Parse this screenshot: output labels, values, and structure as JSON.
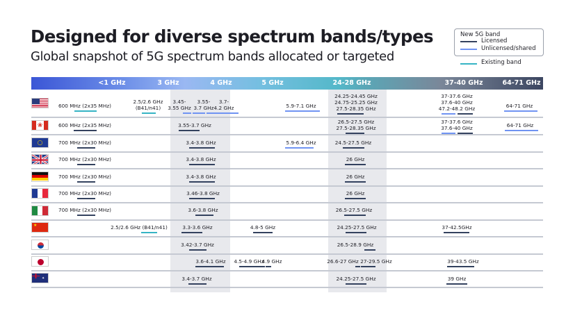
{
  "title": "Designed for diverse spectrum bands/types",
  "subtitle": "Global snapshot of 5G spectrum bands allocated or targeted",
  "legend": {
    "heading": "New 5G band",
    "licensed": "Licensed",
    "unlicensed": "Unlicensed/shared",
    "existing": "Existing band"
  },
  "colors": {
    "licensed": "#33415e",
    "unlicensed": "#6f93f2",
    "existing": "#35b4c4"
  },
  "header": [
    "<1 GHz",
    "3 GHz",
    "4 GHz",
    "5 GHz",
    "24-28 GHz",
    "37-40 GHz",
    "64-71 GHz"
  ],
  "rows": [
    {
      "country": "United States",
      "flag": "us-flag",
      "bands": [
        {
          "label": "600 MHz (2x35 MHz)",
          "bars": [
            "existing"
          ]
        },
        {
          "label": "2.5/2.6 GHz\n(B41/n41)",
          "bars": [
            "existing"
          ]
        },
        {
          "label": "3.45-\n3.55 GHz",
          "bars": [
            "unlicensed"
          ]
        },
        {
          "label": "3.55-\n3.7 GHz",
          "bars": [
            "unlicensed"
          ]
        },
        {
          "label": "3.7-\n4.2 GHz",
          "bars": [
            "unlicensed"
          ]
        },
        {
          "label": "5.9-7.1 GHz",
          "bars": [
            "unlicensed"
          ]
        },
        {
          "label": "24.25-24.45 GHz\n24.75-25.25 GHz\n27.5-28.35 GHz",
          "bars": [
            "licensed"
          ]
        },
        {
          "label": "37-37.6 GHz\n37.6-40 GHz\n47.2-48.2 GHz",
          "bars": [
            "unlicensed",
            "licensed"
          ]
        },
        {
          "label": "64-71 GHz",
          "bars": [
            "unlicensed"
          ]
        }
      ]
    },
    {
      "country": "Canada",
      "flag": "canada-flag",
      "bands": [
        {
          "label": "600 MHz (2x35 MHz)",
          "bars": [
            "licensed"
          ]
        },
        {
          "label": "3.55-3.7 GHz",
          "bars": [
            "licensed"
          ]
        },
        {
          "label": "26.5-27.5 GHz\n27.5-28.35 GHz",
          "bars": [
            "licensed"
          ]
        },
        {
          "label": "37-37.6 GHz\n37.6-40 GHz",
          "bars": [
            "unlicensed",
            "licensed"
          ]
        },
        {
          "label": "64-71 GHz",
          "bars": [
            "unlicensed"
          ]
        }
      ]
    },
    {
      "country": "European Union",
      "flag": "eu-flag",
      "bands": [
        {
          "label": "700 MHz (2x30 MHz)",
          "bars": [
            "licensed"
          ]
        },
        {
          "label": "3.4-3.8 GHz",
          "bars": [
            "licensed"
          ]
        },
        {
          "label": "5.9-6.4 GHz",
          "bars": [
            "unlicensed"
          ]
        },
        {
          "label": "24.5-27.5 GHz",
          "bars": [
            "licensed"
          ]
        }
      ]
    },
    {
      "country": "United Kingdom",
      "flag": "uk-flag",
      "bands": [
        {
          "label": "700 MHz (2x30 MHz)",
          "bars": [
            "licensed"
          ]
        },
        {
          "label": "3.4-3.8 GHz",
          "bars": [
            "licensed"
          ]
        },
        {
          "label": "26 GHz",
          "bars": [
            "licensed"
          ]
        }
      ]
    },
    {
      "country": "Germany",
      "flag": "germany-flag",
      "bands": [
        {
          "label": "700 MHz (2x30 MHz)",
          "bars": [
            "licensed"
          ]
        },
        {
          "label": "3.4-3.8 GHz",
          "bars": [
            "licensed"
          ]
        },
        {
          "label": "26 GHz",
          "bars": [
            "licensed"
          ]
        }
      ]
    },
    {
      "country": "France",
      "flag": "france-flag",
      "bands": [
        {
          "label": "700 MHz (2x30 MHz)",
          "bars": [
            "licensed"
          ]
        },
        {
          "label": "3.46-3.8 GHz",
          "bars": [
            "licensed"
          ]
        },
        {
          "label": "26 GHz",
          "bars": [
            "licensed"
          ]
        }
      ]
    },
    {
      "country": "Italy",
      "flag": "italy-flag",
      "bands": [
        {
          "label": "700 MHz (2x30 MHz)",
          "bars": [
            "licensed"
          ]
        },
        {
          "label": "3.6-3.8 GHz",
          "bars": [
            "licensed"
          ]
        },
        {
          "label": "26.5-27.5 GHz",
          "bars": [
            "licensed"
          ]
        }
      ]
    },
    {
      "country": "China",
      "flag": "china-flag",
      "bands": [
        {
          "label": "2.5/2.6 GHz (B41/n41)",
          "bars": [
            "existing"
          ]
        },
        {
          "label": "3.3-3.6 GHz",
          "bars": [
            "licensed"
          ]
        },
        {
          "label": "4.8-5 GHz",
          "bars": [
            "licensed"
          ]
        },
        {
          "label": "24.25-27.5 GHz",
          "bars": [
            "licensed"
          ]
        },
        {
          "label": "37-42.5GHz",
          "bars": [
            "licensed"
          ]
        }
      ]
    },
    {
      "country": "South Korea",
      "flag": "korea-flag",
      "bands": [
        {
          "label": "3.42-3.7 GHz",
          "bars": [
            "licensed"
          ]
        },
        {
          "label": "26.5-28.9 GHz",
          "bars": [
            "licensed"
          ]
        }
      ]
    },
    {
      "country": "Japan",
      "flag": "japan-flag",
      "bands": [
        {
          "label": "3.6-4.1 GHz",
          "bars": [
            "licensed"
          ]
        },
        {
          "label": "4.5-4.9 GHz",
          "bars": [
            "licensed"
          ]
        },
        {
          "label": "4.9 GHz",
          "bars": [
            "licensed"
          ]
        },
        {
          "label": "26.6-27 GHz",
          "bars": [
            "licensed"
          ]
        },
        {
          "label": "27-29.5 GHz",
          "bars": [
            "licensed"
          ]
        },
        {
          "label": "39-43.5 GHz",
          "bars": [
            "licensed"
          ]
        }
      ]
    },
    {
      "country": "Australia",
      "flag": "australia-flag",
      "bands": [
        {
          "label": "3.4-3.7 GHz",
          "bars": [
            "licensed"
          ]
        },
        {
          "label": "24.25-27.5 GHz",
          "bars": [
            "licensed"
          ]
        },
        {
          "label": "39 GHz",
          "bars": [
            "licensed"
          ]
        }
      ]
    }
  ]
}
